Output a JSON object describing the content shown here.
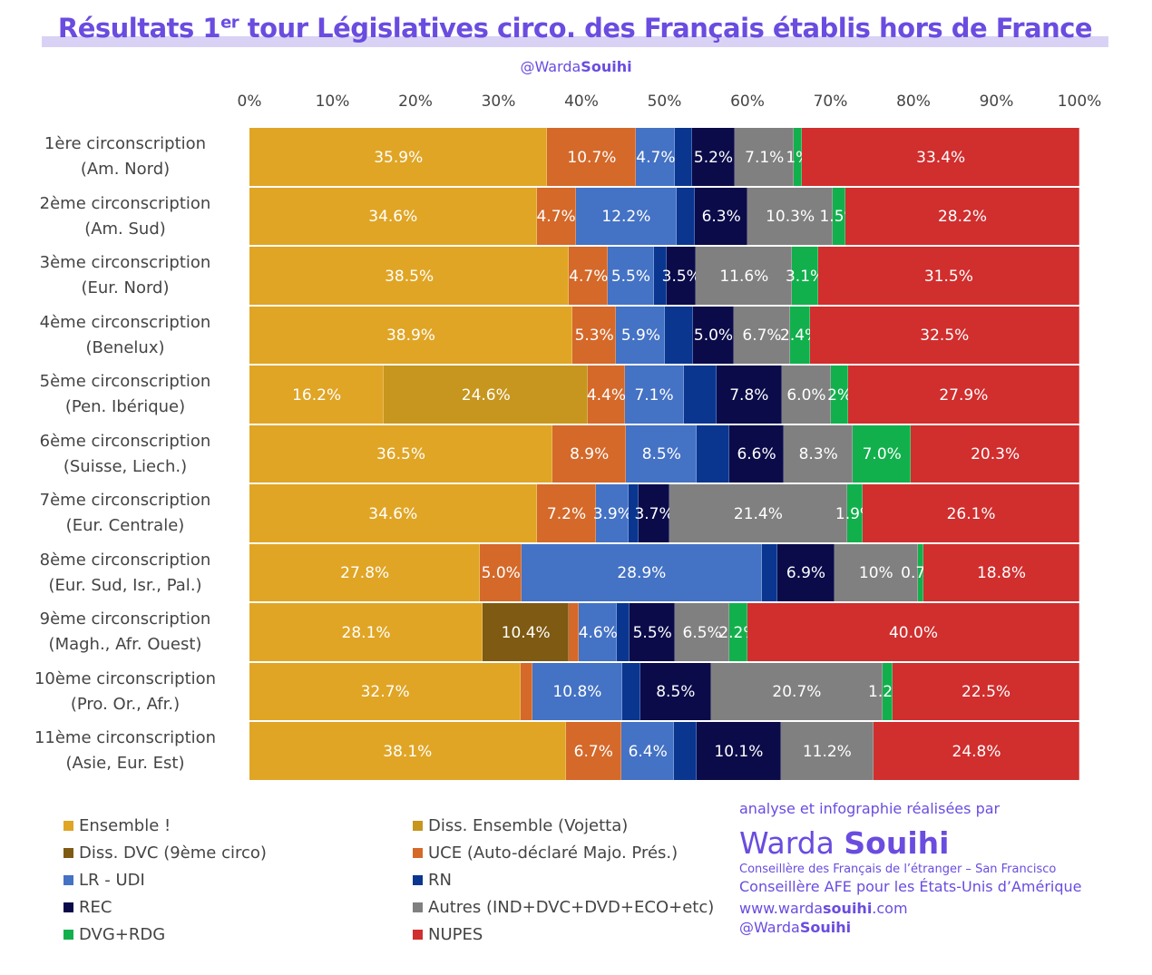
{
  "header": {
    "title_pre": "Résultats 1",
    "title_sup": "er",
    "title_post": " tour Législatives circo. des Français établis hors de France",
    "handle_pre": "@Warda",
    "handle_bold": "Souihi"
  },
  "chart_data": {
    "type": "bar",
    "orientation": "horizontal",
    "stacked": true,
    "xlim": [
      0,
      100
    ],
    "ticks": [
      "0%",
      "10%",
      "20%",
      "30%",
      "40%",
      "50%",
      "60%",
      "70%",
      "80%",
      "90%",
      "100%"
    ],
    "series": [
      {
        "name": "Ensemble !",
        "color": "#E0A525"
      },
      {
        "name": "Diss. Ensemble (Vojetta)",
        "color": "#C7961E"
      },
      {
        "name": "Diss. DVC (9ème circo)",
        "color": "#7E5A12"
      },
      {
        "name": "UCE (Auto-déclaré Majo. Prés.)",
        "color": "#D4692A"
      },
      {
        "name": "LR - UDI",
        "color": "#4472C4"
      },
      {
        "name": "RN",
        "color": "#0A3690"
      },
      {
        "name": "REC",
        "color": "#0B0B4A"
      },
      {
        "name": "Autres (IND+DVC+DVD+ECO+etc)",
        "color": "#808080"
      },
      {
        "name": "DVG+RDG",
        "color": "#12B04C"
      },
      {
        "name": "NUPES",
        "color": "#D12E2E"
      }
    ],
    "rows": [
      {
        "line1": "1ère circonscription",
        "line2": "(Am. Nord)",
        "values": [
          35.9,
          0,
          0,
          10.7,
          4.7,
          2.0,
          5.2,
          7.1,
          1,
          33.4
        ],
        "labels": [
          "35.9%",
          null,
          null,
          "10.7%",
          "4.7%",
          null,
          "5.2%",
          "7.1%",
          "1%",
          "33.4%"
        ]
      },
      {
        "line1": "2ème circonscription",
        "line2": "(Am. Sud)",
        "values": [
          34.6,
          0,
          0,
          4.7,
          12.2,
          2.2,
          6.3,
          10.3,
          1.5,
          28.2
        ],
        "labels": [
          "34.6%",
          null,
          null,
          "4.7%",
          "12.2%",
          null,
          "6.3%",
          "10.3%",
          "1.5%",
          "28.2%"
        ]
      },
      {
        "line1": "3ème circonscription",
        "line2": "(Eur. Nord)",
        "values": [
          38.5,
          0,
          0,
          4.7,
          5.5,
          1.6,
          3.5,
          11.6,
          3.1,
          31.5
        ],
        "labels": [
          "38.5%",
          null,
          null,
          "4.7%",
          "5.5%",
          null,
          "3.5%",
          "11.6%",
          "3.1%",
          "31.5%"
        ]
      },
      {
        "line1": "4ème circonscription",
        "line2": "(Benelux)",
        "values": [
          38.9,
          0,
          0,
          5.3,
          5.9,
          3.3,
          5.0,
          6.7,
          2.4,
          32.5
        ],
        "labels": [
          "38.9%",
          null,
          null,
          "5.3%",
          "5.9%",
          null,
          "5.0%",
          "6.7%",
          "2.4%",
          "32.5%"
        ]
      },
      {
        "line1": "5ème circonscription",
        "line2": "(Pen. Ibérique)",
        "values": [
          16.2,
          24.6,
          0,
          4.4,
          7.1,
          4.0,
          7.8,
          6.0,
          2,
          27.9
        ],
        "labels": [
          "16.2%",
          "24.6%",
          null,
          "4.4%",
          "7.1%",
          null,
          "7.8%",
          "6.0%",
          "2%",
          "27.9%"
        ]
      },
      {
        "line1": "6ème circonscription",
        "line2": "(Suisse, Liech.)",
        "values": [
          36.5,
          0,
          0,
          8.9,
          8.5,
          3.9,
          6.6,
          8.3,
          7.0,
          20.3
        ],
        "labels": [
          "36.5%",
          null,
          null,
          "8.9%",
          "8.5%",
          null,
          "6.6%",
          "8.3%",
          "7.0%",
          "20.3%"
        ]
      },
      {
        "line1": "7ème circonscription",
        "line2": "(Eur. Centrale)",
        "values": [
          34.6,
          0,
          0,
          7.2,
          3.9,
          1.2,
          3.7,
          21.4,
          1.9,
          26.1
        ],
        "labels": [
          "34.6%",
          null,
          null,
          "7.2%",
          "3.9%",
          null,
          "3.7%",
          "21.4%",
          "1.9%",
          "26.1%"
        ]
      },
      {
        "line1": "8ème circonscription",
        "line2": "(Eur. Sud, Isr., Pal.)",
        "values": [
          27.8,
          0,
          0,
          5.0,
          28.9,
          1.9,
          6.9,
          10,
          0.7,
          18.8
        ],
        "labels": [
          "27.8%",
          null,
          null,
          "5.0%",
          "28.9%",
          null,
          "6.9%",
          "10%",
          "0.7%",
          "18.8%"
        ]
      },
      {
        "line1": "9ème circonscription",
        "line2": "(Magh., Afr. Ouest)",
        "values": [
          28.1,
          0,
          10.4,
          1.2,
          4.6,
          1.5,
          5.5,
          6.5,
          2.2,
          40.0
        ],
        "labels": [
          "28.1%",
          null,
          "10.4%",
          null,
          "4.6%",
          null,
          "5.5%",
          "6.5%",
          "2.2%",
          "40.0%"
        ]
      },
      {
        "line1": "10ème circonscription",
        "line2": "(Pro. Or., Afr.)",
        "values": [
          32.7,
          0,
          0,
          1.4,
          10.8,
          2.2,
          8.5,
          20.7,
          1.2,
          22.5
        ],
        "labels": [
          "32.7%",
          null,
          null,
          null,
          "10.8%",
          null,
          "8.5%",
          "20.7%",
          "1.2%",
          "22.5%"
        ]
      },
      {
        "line1": "11ème circonscription",
        "line2": "(Asie, Eur. Est)",
        "values": [
          38.1,
          0,
          0,
          6.7,
          6.4,
          2.7,
          10.1,
          11.2,
          0,
          24.8
        ],
        "labels": [
          "38.1%",
          null,
          null,
          "6.7%",
          "6.4%",
          null,
          "10.1%",
          "11.2%",
          null,
          "24.8%"
        ]
      }
    ],
    "legend_placement": "bottom-left"
  },
  "credits": {
    "intro": "analyse et infographie réalisées par",
    "name_first": "Warda",
    "name_last": "Souihi",
    "line1": "Conseillère des Français  de l’étranger – San Francisco",
    "line2": "Conseillère AFE pour les États-Unis d’Amérique",
    "web_pre": "www.warda",
    "web_bold": "souihi",
    "web_post": ".com",
    "handle_pre": "@Warda",
    "handle_bold": "Souihi"
  }
}
